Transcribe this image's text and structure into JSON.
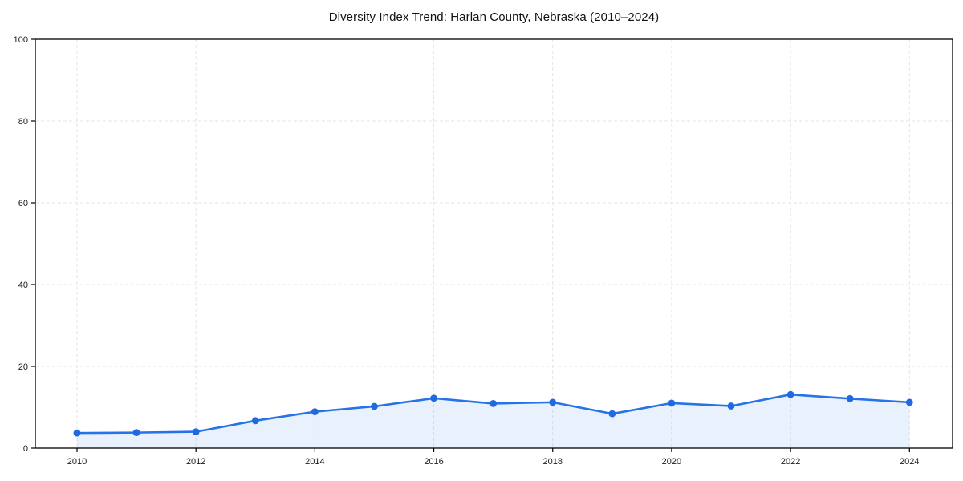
{
  "chart_data": {
    "type": "line",
    "title": "Diversity Index Trend: Harlan County, Nebraska (2010–2024)",
    "series_name": "Diversity Index",
    "x": [
      2010,
      2011,
      2012,
      2013,
      2014,
      2015,
      2016,
      2017,
      2018,
      2019,
      2020,
      2021,
      2022,
      2023,
      2024
    ],
    "values": [
      3.7,
      3.8,
      4.0,
      6.7,
      8.9,
      10.2,
      12.2,
      10.9,
      11.2,
      8.4,
      11.0,
      10.3,
      13.1,
      12.1,
      11.2
    ],
    "xlabel": "",
    "ylabel": "",
    "ylim": [
      0,
      100
    ],
    "yticks": [
      0,
      20,
      40,
      60,
      80,
      100
    ],
    "xticks": [
      2010,
      2012,
      2014,
      2016,
      2018,
      2020,
      2022,
      2024
    ],
    "grid": true,
    "grid_style": "dashed",
    "legend": "none",
    "area_fill": true,
    "marker": "circle",
    "colors": {
      "line": "#2673e8",
      "marker": "#1f6ae0",
      "fill": "#2673e8",
      "fill_opacity": 0.1,
      "grid": "#e4e4e4",
      "axis": "#000000",
      "tick_text": "#1a1a1a",
      "title_text": "#111111",
      "background": "#ffffff"
    }
  }
}
